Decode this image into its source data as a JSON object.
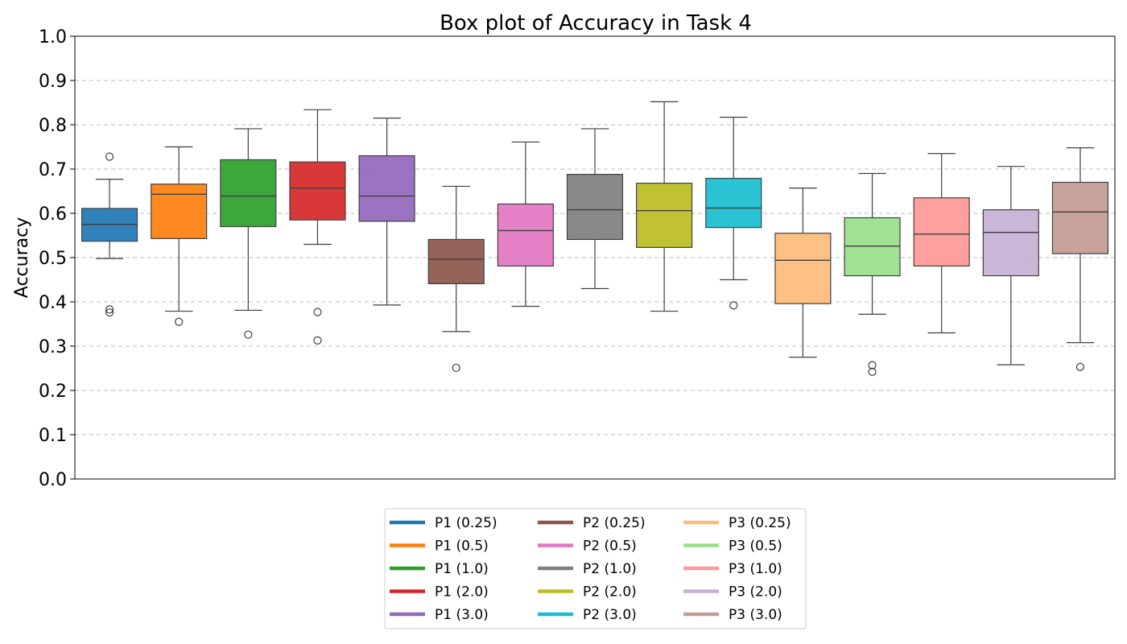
{
  "chart_data": {
    "type": "box",
    "title": "Box plot of Accuracy in Task 4",
    "xlabel": "",
    "ylabel": "Accuracy",
    "ylim": [
      0.0,
      1.0
    ],
    "yticks": [
      "0.0",
      "0.1",
      "0.2",
      "0.3",
      "0.4",
      "0.5",
      "0.6",
      "0.7",
      "0.8",
      "0.9",
      "1.0"
    ],
    "grid": "y-dashed",
    "legend_position": "bottom-center",
    "series": [
      {
        "name": "P1 (0.25)",
        "color": "#1f77b4",
        "min": 0.498,
        "q1": 0.537,
        "median": 0.575,
        "q3": 0.611,
        "max": 0.677,
        "outliers": [
          0.728,
          0.383,
          0.376
        ]
      },
      {
        "name": "P1 (0.5)",
        "color": "#ff7f0e",
        "min": 0.379,
        "q1": 0.543,
        "median": 0.643,
        "q3": 0.666,
        "max": 0.75,
        "outliers": [
          0.355
        ]
      },
      {
        "name": "P1 (1.0)",
        "color": "#2ca02c",
        "min": 0.381,
        "q1": 0.57,
        "median": 0.639,
        "q3": 0.721,
        "max": 0.791,
        "outliers": [
          0.326
        ]
      },
      {
        "name": "P1 (2.0)",
        "color": "#d62728",
        "min": 0.53,
        "q1": 0.585,
        "median": 0.657,
        "q3": 0.716,
        "max": 0.834,
        "outliers": [
          0.377,
          0.313
        ]
      },
      {
        "name": "P1 (3.0)",
        "color": "#9467bd",
        "min": 0.393,
        "q1": 0.582,
        "median": 0.639,
        "q3": 0.73,
        "max": 0.815,
        "outliers": []
      },
      {
        "name": "P2 (0.25)",
        "color": "#8c564b",
        "min": 0.333,
        "q1": 0.441,
        "median": 0.496,
        "q3": 0.541,
        "max": 0.661,
        "outliers": [
          0.251
        ]
      },
      {
        "name": "P2 (0.5)",
        "color": "#e377c2",
        "min": 0.39,
        "q1": 0.481,
        "median": 0.561,
        "q3": 0.621,
        "max": 0.761,
        "outliers": []
      },
      {
        "name": "P2 (1.0)",
        "color": "#7f7f7f",
        "min": 0.43,
        "q1": 0.541,
        "median": 0.608,
        "q3": 0.688,
        "max": 0.791,
        "outliers": []
      },
      {
        "name": "P2 (2.0)",
        "color": "#bcbd22",
        "min": 0.379,
        "q1": 0.523,
        "median": 0.606,
        "q3": 0.668,
        "max": 0.852,
        "outliers": []
      },
      {
        "name": "P2 (3.0)",
        "color": "#17becf",
        "min": 0.45,
        "q1": 0.568,
        "median": 0.612,
        "q3": 0.679,
        "max": 0.817,
        "outliers": [
          0.392
        ]
      },
      {
        "name": "P3 (0.25)",
        "color": "#ffbb78",
        "min": 0.275,
        "q1": 0.396,
        "median": 0.494,
        "q3": 0.555,
        "max": 0.657,
        "outliers": []
      },
      {
        "name": "P3 (0.5)",
        "color": "#98df8a",
        "min": 0.372,
        "q1": 0.459,
        "median": 0.526,
        "q3": 0.59,
        "max": 0.69,
        "outliers": [
          0.257,
          0.242
        ]
      },
      {
        "name": "P3 (1.0)",
        "color": "#ff9896",
        "min": 0.33,
        "q1": 0.481,
        "median": 0.553,
        "q3": 0.635,
        "max": 0.735,
        "outliers": []
      },
      {
        "name": "P3 (2.0)",
        "color": "#c5b0d5",
        "min": 0.258,
        "q1": 0.459,
        "median": 0.557,
        "q3": 0.608,
        "max": 0.706,
        "outliers": []
      },
      {
        "name": "P3 (3.0)",
        "color": "#c49c94",
        "min": 0.308,
        "q1": 0.509,
        "median": 0.603,
        "q3": 0.67,
        "max": 0.748,
        "outliers": [
          0.253
        ]
      }
    ]
  }
}
